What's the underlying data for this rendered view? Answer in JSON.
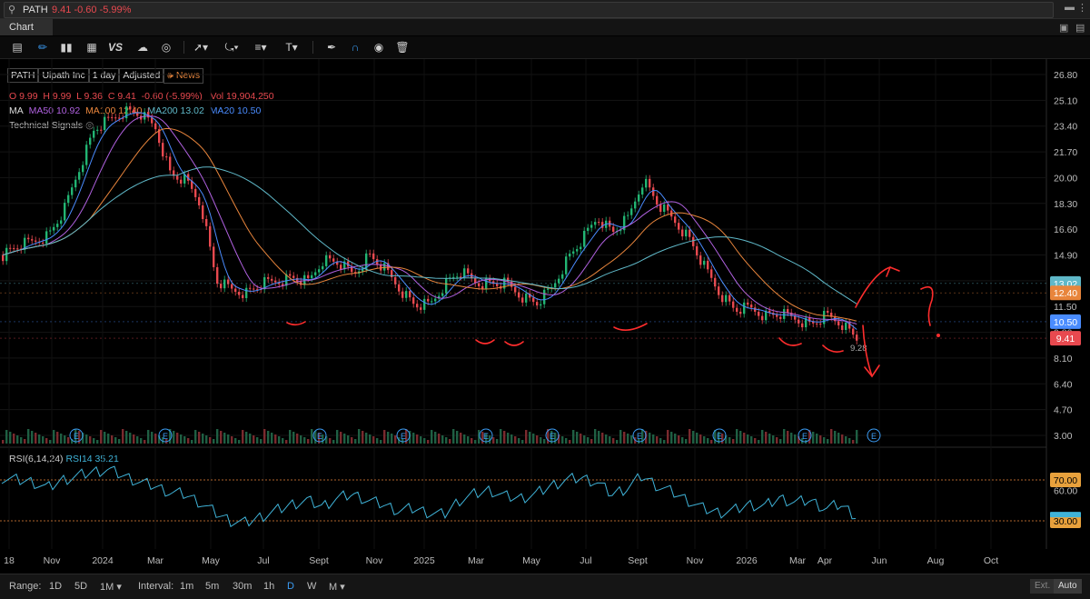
{
  "search": {
    "symbol": "PATH",
    "change": "9.41 -0.60 -5.99%"
  },
  "tab_label": "Chart",
  "header": {
    "symbol": "PATH",
    "company": "Uipath Inc",
    "period": "1 day",
    "adjust": "Adjusted",
    "news": "News",
    "ohlc": {
      "o_label": "O",
      "o": "9.99",
      "h_label": "H",
      "h": "9.99",
      "l_label": "L",
      "l": "9.36",
      "c_label": "C",
      "c": "9.41",
      "chg": "-0.60 (-5.99%)",
      "vol_label": "Vol",
      "vol": "19,904,250"
    },
    "ma_label": "MA",
    "ma50": "MA50 10.92",
    "ma100": "MA100 12.40",
    "ma200": "MA200 13.02",
    "ma20": "MA20 10.50",
    "tech_signals": "Technical Signals"
  },
  "rsi_label": {
    "name": "RSI(6,14,24)",
    "value": "RSI14 35.21"
  },
  "bottom": {
    "range_label": "Range:",
    "ranges": [
      "1D",
      "5D",
      "1M ▾"
    ],
    "interval_label": "Interval:",
    "intervals": [
      "1m",
      "5m",
      "30m",
      "1h",
      "D",
      "W",
      "M ▾"
    ],
    "active_interval": "D",
    "ext": "Ext.",
    "auto": "Auto"
  },
  "colors": {
    "bg": "#000000",
    "up": "#22b573",
    "down": "#e8494f",
    "ma20": "#4a8cff",
    "ma50": "#b061e0",
    "ma100": "#e8853c",
    "ma200": "#5fb8c8",
    "rsi": "#3fb3d8",
    "annotation": "#ff2d2d"
  },
  "chart_data": [
    {
      "type": "candlestick",
      "title": "PATH",
      "y_axis_ticks": [
        "26.80",
        "25.10",
        "23.40",
        "21.70",
        "20.00",
        "18.30",
        "16.60",
        "14.90",
        "13.20",
        "11.50",
        "9.80",
        "8.10",
        "6.40",
        "4.70",
        "3.00"
      ],
      "log_scale": false,
      "x_tick_labels": [
        "18",
        "Nov",
        "2024",
        "Mar",
        "May",
        "Jul",
        "Sept",
        "Nov",
        "2025",
        "Mar",
        "May",
        "Jul",
        "Sept",
        "Nov",
        "2026",
        "Mar",
        "Apr",
        "Jun",
        "Aug",
        "Oct"
      ],
      "price_approx_close": [
        14.9,
        15.5,
        15.8,
        16.2,
        17.8,
        20.6,
        23.2,
        23.8,
        24.4,
        24.2,
        23.3,
        20.2,
        19.8,
        18.2,
        13.2,
        12.6,
        12.4,
        13.0,
        13.2,
        13.4,
        13.1,
        14.6,
        14.4,
        13.6,
        14.9,
        14.0,
        12.7,
        11.6,
        11.6,
        13.0,
        13.8,
        13.1,
        13.0,
        13.0,
        12.2,
        11.7,
        12.7,
        14.6,
        15.9,
        17.4,
        16.4,
        17.3,
        19.9,
        18.2,
        17.2,
        16.0,
        14.1,
        12.4,
        11.3,
        11.4,
        10.9,
        11.0,
        10.7,
        10.3,
        10.9,
        10.4,
        9.41
      ],
      "overlays": [
        {
          "name": "MA20",
          "value": 10.5,
          "color": "#4a8cff"
        },
        {
          "name": "MA50",
          "value": 10.92,
          "color": "#b061e0"
        },
        {
          "name": "MA100",
          "value": 12.4,
          "color": "#e8853c"
        },
        {
          "name": "MA200",
          "value": 13.02,
          "color": "#5fb8c8"
        }
      ],
      "price_markers": [
        {
          "label": "13.02",
          "color": "#5fb8c8"
        },
        {
          "label": "12.40",
          "color": "#e8853c"
        },
        {
          "label": "10.50",
          "color": "#4a8cff"
        },
        {
          "label": "9.41",
          "color": "#e8494f"
        }
      ],
      "low_marker": "9.28",
      "earnings_marker_label": "E",
      "earnings_count": 10
    },
    {
      "type": "line",
      "title": "RSI(6,14,24)",
      "series": [
        {
          "name": "RSI14",
          "last": 35.21
        }
      ],
      "levels": [
        "70.00",
        "30.00"
      ],
      "y_axis_ticks": [
        "70.00",
        "60.00",
        "30.00"
      ],
      "rsi_approx": [
        72,
        70,
        68,
        62,
        70,
        74,
        78,
        80,
        74,
        68,
        64,
        58,
        56,
        48,
        38,
        30,
        28,
        34,
        40,
        46,
        50,
        44,
        52,
        56,
        50,
        46,
        40,
        42,
        38,
        36,
        50,
        56,
        60,
        54,
        52,
        56,
        64,
        70,
        72,
        68,
        56,
        62,
        74,
        64,
        58,
        50,
        42,
        38,
        40,
        46,
        44,
        52,
        48,
        50,
        42,
        46,
        35
      ]
    }
  ],
  "annotations": {
    "question": "?"
  }
}
